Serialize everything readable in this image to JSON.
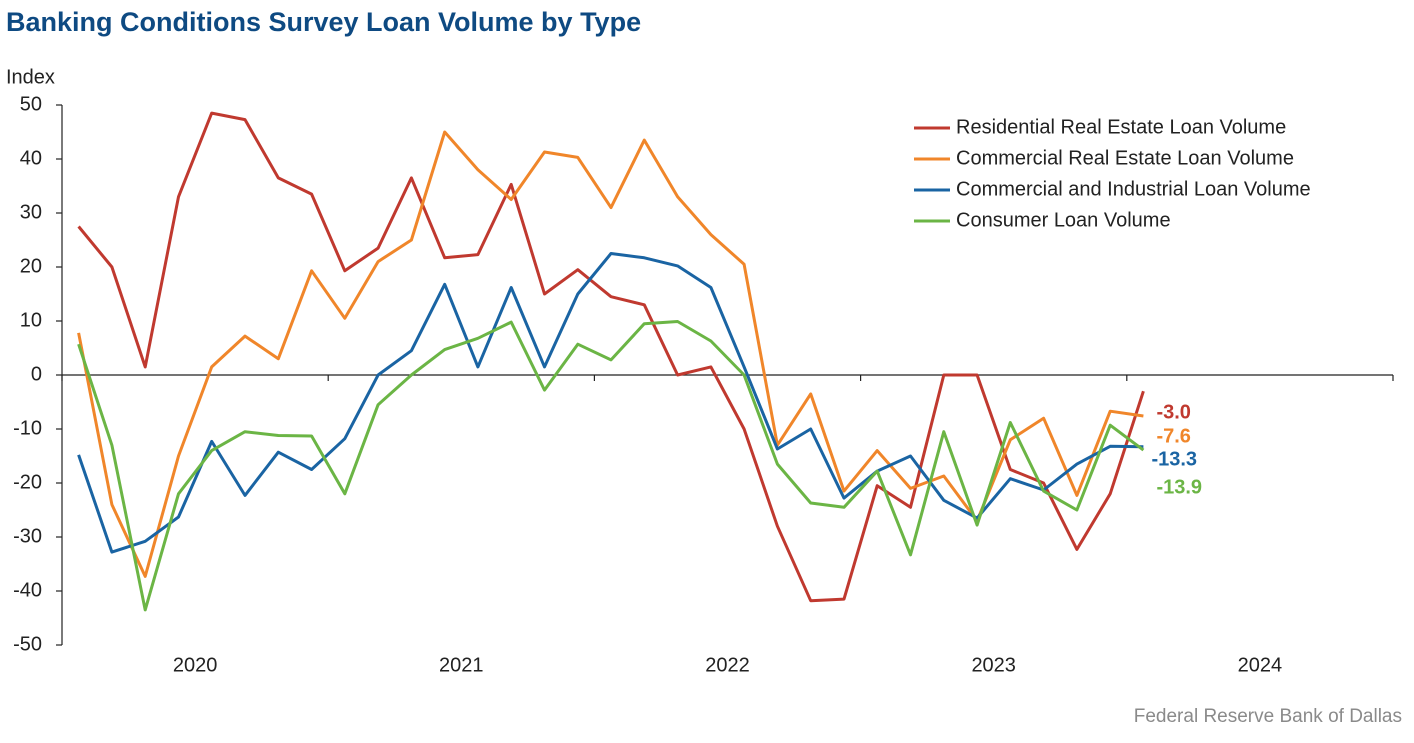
{
  "chart_data": {
    "type": "line",
    "title": "Banking Conditions Survey Loan Volume by Type",
    "y_axis_label": "Index",
    "source": "Federal Reserve Bank of Dallas",
    "x": [
      2020.0625,
      2020.1875,
      2020.3125,
      2020.4375,
      2020.5625,
      2020.6875,
      2020.8125,
      2020.9375,
      2021.0625,
      2021.1875,
      2021.3125,
      2021.4375,
      2021.5625,
      2021.6875,
      2021.8125,
      2021.9375,
      2022.0625,
      2022.1875,
      2022.3125,
      2022.4375,
      2022.5625,
      2022.6875,
      2022.8125,
      2022.9375,
      2023.0625,
      2023.1875,
      2023.3125,
      2023.4375,
      2023.5625,
      2023.6875,
      2023.8125,
      2023.9375,
      2024.0625
    ],
    "xlim": [
      2020,
      2025
    ],
    "xticks": [
      {
        "value": 2020,
        "label": "2020"
      },
      {
        "value": 2021,
        "label": "2021"
      },
      {
        "value": 2022,
        "label": "2022"
      },
      {
        "value": 2023,
        "label": "2023"
      },
      {
        "value": 2024,
        "label": "2024"
      }
    ],
    "ylim": [
      -50,
      50
    ],
    "yticks": [
      -50,
      -40,
      -30,
      -20,
      -10,
      0,
      10,
      20,
      30,
      40,
      50
    ],
    "legend": "top-right",
    "series": [
      {
        "name": "Residential Real Estate Loan Volume",
        "color": "#c0392f",
        "end_label": "-3.0",
        "values": [
          27.5,
          20,
          1.5,
          33,
          48.5,
          47.3,
          36.5,
          33.5,
          19.3,
          23.5,
          36.5,
          21.7,
          22.3,
          35.3,
          15,
          19.5,
          14.5,
          13,
          0,
          1.5,
          -10,
          -28,
          -41.8,
          -41.5,
          -20.5,
          -24.5,
          0,
          0,
          -17.5,
          -20,
          -32.3,
          -22,
          -3.0
        ]
      },
      {
        "name": "Commercial Real Estate Loan Volume",
        "color": "#f0862a",
        "end_label": "-7.6",
        "values": [
          7.8,
          -24,
          -37.3,
          -15,
          1.5,
          7.2,
          3,
          19.3,
          10.5,
          21,
          25,
          45,
          38,
          32.5,
          41.3,
          40.3,
          31,
          43.5,
          33,
          26,
          20.5,
          -13,
          -3.5,
          -21.5,
          -14,
          -21,
          -18.7,
          -27,
          -12,
          -8,
          -22.3,
          -6.7,
          -7.6
        ]
      },
      {
        "name": "Commercial and Industrial Loan Volume",
        "color": "#1a64a3",
        "end_label": "-13.3",
        "values": [
          -14.8,
          -32.8,
          -30.8,
          -26.3,
          -12.3,
          -22.3,
          -14.3,
          -17.5,
          -11.8,
          0,
          4.5,
          16.8,
          1.5,
          16.2,
          1.5,
          15,
          22.5,
          21.7,
          20.2,
          16.2,
          1.5,
          -13.7,
          -10,
          -22.8,
          -17.8,
          -15,
          -23.2,
          -26.5,
          -19.2,
          -21.3,
          -16.5,
          -13.2,
          -13.3
        ]
      },
      {
        "name": "Consumer Loan Volume",
        "color": "#6bb545",
        "end_label": "-13.9",
        "values": [
          5.7,
          -13,
          -43.5,
          -22,
          -14,
          -10.5,
          -11.2,
          -11.3,
          -22,
          -5.5,
          0,
          4.7,
          6.8,
          9.8,
          -2.8,
          5.7,
          2.8,
          9.5,
          9.9,
          6.3,
          0,
          -16.5,
          -23.7,
          -24.5,
          -17.8,
          -33.3,
          -10.5,
          -27.8,
          -8.8,
          -21.5,
          -25,
          -9.3,
          -13.9
        ]
      }
    ]
  }
}
